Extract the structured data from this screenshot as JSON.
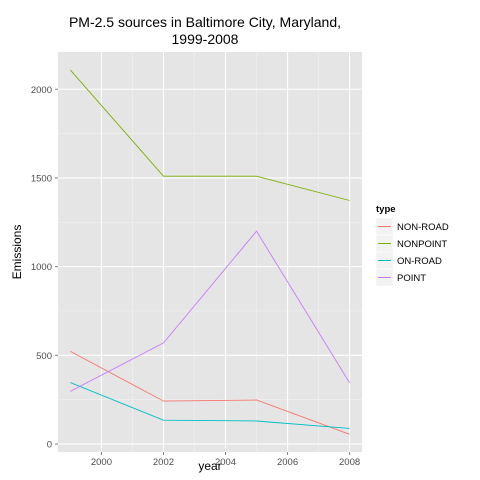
{
  "chart_data": {
    "type": "line",
    "title_lines": [
      "PM-2.5 sources in Baltimore City, Maryland,",
      "1999-2008"
    ],
    "xlabel": "year",
    "ylabel": "Emissions",
    "x": [
      1999,
      2002,
      2005,
      2008
    ],
    "xlim": [
      1998.6,
      2008.4
    ],
    "ylim": [
      -45,
      2210
    ],
    "xticks": [
      2000,
      2002,
      2004,
      2006,
      2008
    ],
    "yticks": [
      0,
      500,
      1000,
      1500,
      2000
    ],
    "grid": true,
    "legend": {
      "title": "type",
      "placement": "right"
    },
    "series": [
      {
        "name": "NON-ROAD",
        "color": "#F8766D",
        "values": [
          522,
          242,
          248,
          55
        ]
      },
      {
        "name": "NONPOINT",
        "color": "#7CAE00",
        "values": [
          2108,
          1510,
          1510,
          1373
        ]
      },
      {
        "name": "ON-ROAD",
        "color": "#00BFC4",
        "values": [
          346,
          134,
          130,
          88
        ]
      },
      {
        "name": "POINT",
        "color": "#C77CFF",
        "values": [
          297,
          570,
          1200,
          345
        ]
      }
    ]
  }
}
